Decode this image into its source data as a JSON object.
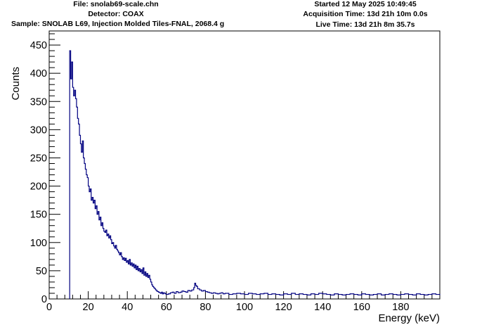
{
  "header": {
    "file": "File: snolab69-scale.chn",
    "detector": "Detector: COAX",
    "sample": "Sample: SNOLAB L69, Injection Molded Tiles-FNAL, 2068.4 g",
    "started": "Started 12 May 2025 10:49:45",
    "acquisition": "Acquisition Time: 13d 21h 10m 0.0s",
    "live": "Live Time: 13d 21h 8m 35.7s"
  },
  "chart_data": {
    "type": "line",
    "title": "",
    "xlabel": "Energy (keV)",
    "ylabel": "Counts",
    "xlim": [
      0,
      200
    ],
    "ylim": [
      0,
      475
    ],
    "xticks": [
      0,
      20,
      40,
      60,
      80,
      100,
      120,
      140,
      160,
      180
    ],
    "yticks": [
      0,
      50,
      100,
      150,
      200,
      250,
      300,
      350,
      400,
      450
    ],
    "line_color": "#000080",
    "grid": false,
    "legend": "none",
    "series": [
      {
        "x": [
          10.5,
          11,
          11.5,
          12,
          12.5,
          13,
          13.5,
          14,
          14.5,
          15,
          15.5,
          16,
          16.5,
          17,
          17.5,
          18,
          18.5,
          19,
          19.5,
          20,
          20.5,
          21,
          21.5,
          22,
          22.5,
          23,
          23.5,
          24,
          24.5,
          25,
          25.5,
          26,
          26.5,
          27,
          27.5,
          28,
          28.5,
          29,
          29.5,
          30,
          30.5,
          31,
          31.5,
          32,
          32.5,
          33,
          33.5,
          34,
          34.5,
          35,
          35.5,
          36,
          36.5,
          37,
          37.5,
          38,
          38.5,
          39,
          39.5,
          40,
          40.5,
          41,
          41.5,
          42,
          42.5,
          43,
          43.5,
          44,
          44.5,
          45,
          45.5,
          46,
          46.5,
          47,
          47.5,
          48,
          48.5,
          49,
          49.5,
          50,
          50.5,
          51,
          51.5,
          52,
          52.5,
          53,
          53.5,
          54,
          54.5,
          55,
          55.5,
          56,
          56.5,
          57,
          57.5,
          58,
          58.5,
          59,
          59.5,
          60,
          61,
          62,
          63,
          64,
          65,
          66,
          67,
          68,
          69,
          70,
          71,
          72,
          73,
          74,
          74.5,
          75,
          75.5,
          76,
          77,
          78,
          79,
          80,
          81,
          82,
          83,
          84,
          85,
          86,
          87,
          88,
          89,
          90,
          92,
          94,
          96,
          98,
          100,
          102,
          104,
          106,
          108,
          110,
          112,
          114,
          116,
          118,
          120,
          122,
          124,
          126,
          128,
          130,
          132,
          134,
          136,
          138,
          140,
          142,
          144,
          146,
          148,
          150,
          152,
          154,
          156,
          158,
          160,
          162,
          164,
          166,
          168,
          170,
          172,
          174,
          176,
          178,
          180,
          182,
          184,
          186,
          188,
          190,
          192,
          194,
          196,
          198,
          200
        ],
        "y": [
          440,
          390,
          420,
          375,
          360,
          370,
          355,
          340,
          320,
          310,
          290,
          275,
          260,
          280,
          250,
          240,
          230,
          220,
          215,
          200,
          190,
          195,
          175,
          180,
          170,
          175,
          160,
          165,
          150,
          155,
          140,
          145,
          130,
          135,
          125,
          120,
          118,
          122,
          112,
          115,
          108,
          112,
          105,
          98,
          100,
          94,
          90,
          95,
          88,
          85,
          82,
          78,
          82,
          75,
          70,
          73,
          68,
          72,
          65,
          68,
          62,
          70,
          60,
          64,
          58,
          62,
          55,
          60,
          52,
          58,
          50,
          54,
          48,
          52,
          45,
          55,
          42,
          48,
          40,
          45,
          38,
          42,
          35,
          30,
          25,
          22,
          20,
          18,
          16,
          14,
          13,
          12,
          11,
          10,
          12,
          9,
          11,
          10,
          9,
          8,
          9,
          11,
          12,
          10,
          13,
          11,
          12,
          14,
          13,
          12,
          15,
          14,
          16,
          20,
          28,
          24,
          22,
          18,
          16,
          14,
          15,
          13,
          12,
          11,
          10,
          11,
          10,
          9,
          10,
          11,
          9,
          10,
          8,
          9,
          10,
          9,
          8,
          10,
          9,
          8,
          9,
          10,
          8,
          9,
          8,
          7,
          9,
          8,
          10,
          8,
          9,
          8,
          7,
          9,
          8,
          10,
          9,
          8,
          7,
          9,
          8,
          7,
          8,
          9,
          8,
          7,
          9,
          8,
          7,
          8,
          9,
          7,
          8,
          9,
          8,
          7,
          8,
          9,
          8,
          7,
          9,
          8,
          7,
          8,
          9,
          8,
          7
        ]
      }
    ]
  }
}
